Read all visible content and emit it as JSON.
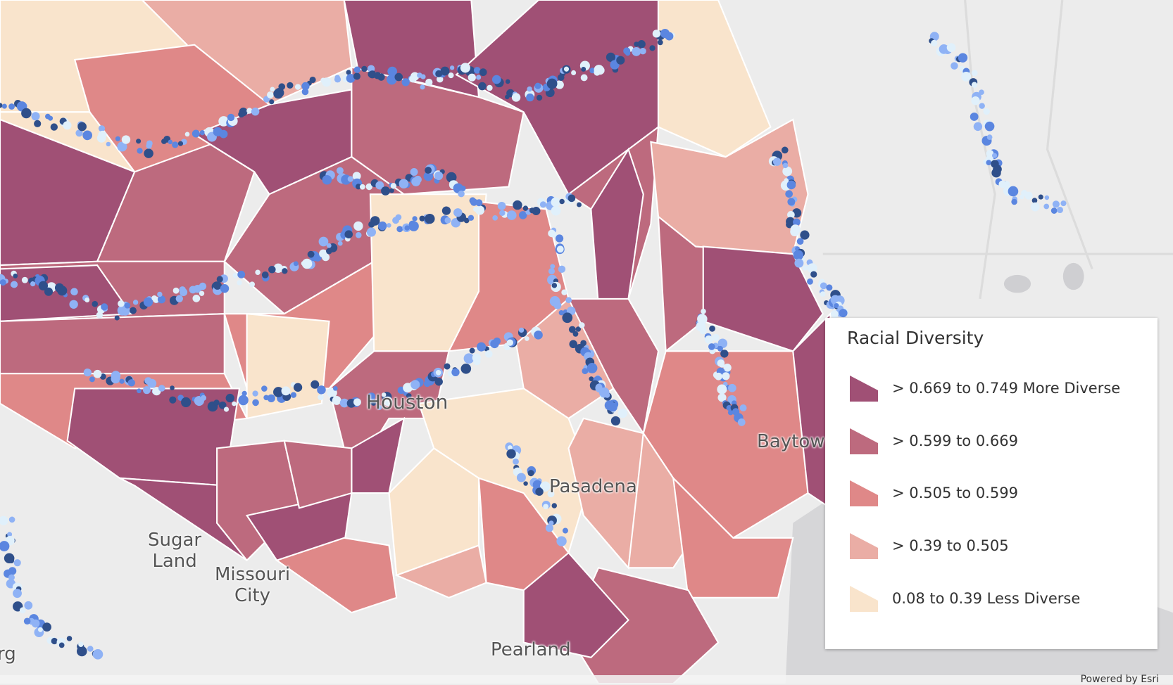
{
  "map": {
    "labels": {
      "houston": "Houston",
      "pasadena": "Pasadena",
      "sugar_land": "Sugar\nLand",
      "missouri_city": "Missouri\nCity",
      "pearland": "Pearland",
      "baytown": "Baytow",
      "rosenberg": "rg"
    },
    "attribution": "Powered by Esri"
  },
  "legend": {
    "title": "Racial Diversity",
    "items": [
      {
        "label": "> 0.669 to 0.749 More Diverse",
        "color": "#a05075"
      },
      {
        "label": "> 0.599 to 0.669",
        "color": "#bd6a7e"
      },
      {
        "label": "> 0.505 to 0.599",
        "color": "#df8888"
      },
      {
        "label": "> 0.39 to 0.505",
        "color": "#eaada5"
      },
      {
        "label": "0.08 to 0.39 Less Diverse",
        "color": "#f9e4cc"
      }
    ]
  }
}
